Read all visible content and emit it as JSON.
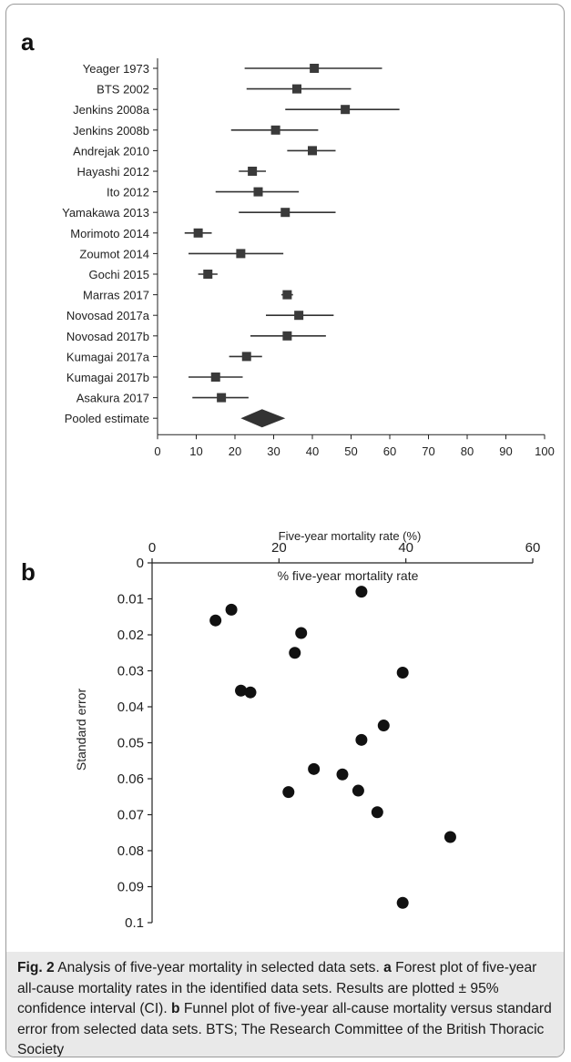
{
  "panel_a_letter": "a",
  "panel_b_letter": "b",
  "chart_data": [
    {
      "type": "forest",
      "panel": "a",
      "xlabel": "Five-year mortality rate (%)",
      "xlim": [
        0,
        100
      ],
      "xticks": [
        0,
        10,
        20,
        30,
        40,
        50,
        60,
        70,
        80,
        90,
        100
      ],
      "grid": false,
      "studies": [
        {
          "label": "Yeager 1973",
          "estimate": 40.5,
          "lower": 22.5,
          "upper": 58
        },
        {
          "label": "BTS 2002",
          "estimate": 36,
          "lower": 23,
          "upper": 50
        },
        {
          "label": "Jenkins 2008a",
          "estimate": 48.5,
          "lower": 33,
          "upper": 62.5
        },
        {
          "label": "Jenkins 2008b",
          "estimate": 30.5,
          "lower": 19,
          "upper": 41.5
        },
        {
          "label": "Andrejak 2010",
          "estimate": 40,
          "lower": 33.5,
          "upper": 46
        },
        {
          "label": "Hayashi 2012",
          "estimate": 24.5,
          "lower": 21,
          "upper": 28
        },
        {
          "label": "Ito 2012",
          "estimate": 26,
          "lower": 15,
          "upper": 36.5
        },
        {
          "label": "Yamakawa 2013",
          "estimate": 33,
          "lower": 21,
          "upper": 46
        },
        {
          "label": "Morimoto 2014",
          "estimate": 10.5,
          "lower": 7,
          "upper": 14
        },
        {
          "label": "Zoumot 2014",
          "estimate": 21.5,
          "lower": 8,
          "upper": 32.5
        },
        {
          "label": "Gochi 2015",
          "estimate": 13,
          "lower": 10.5,
          "upper": 15.5
        },
        {
          "label": "Marras 2017",
          "estimate": 33.5,
          "lower": 32,
          "upper": 35
        },
        {
          "label": "Novosad 2017a",
          "estimate": 36.5,
          "lower": 28,
          "upper": 45.5
        },
        {
          "label": "Novosad 2017b",
          "estimate": 33.5,
          "lower": 24,
          "upper": 43.5
        },
        {
          "label": "Kumagai 2017a",
          "estimate": 23,
          "lower": 18.5,
          "upper": 27
        },
        {
          "label": "Kumagai 2017b",
          "estimate": 15,
          "lower": 8,
          "upper": 22
        },
        {
          "label": "Asakura 2017",
          "estimate": 16.5,
          "lower": 9,
          "upper": 23.5
        }
      ],
      "pooled": {
        "label": "Pooled estimate",
        "estimate": 27,
        "lower": 21.5,
        "upper": 33
      }
    },
    {
      "type": "scatter",
      "panel": "b",
      "xlabel": "% five-year mortality rate",
      "ylabel": "Standard error",
      "xlim": [
        0,
        60
      ],
      "xticks": [
        0,
        20,
        40,
        60
      ],
      "ylim": [
        0,
        0.1
      ],
      "yticks": [
        "0",
        "0.01",
        "0.02",
        "0.03",
        "0.04",
        "0.05",
        "0.06",
        "0.07",
        "0.08",
        "0.09",
        "0.1"
      ],
      "x_axis_position": "top",
      "y_axis_reversed": true,
      "grid": false,
      "points": [
        {
          "x": 33,
          "y": 0.008
        },
        {
          "x": 12.5,
          "y": 0.013
        },
        {
          "x": 10,
          "y": 0.016
        },
        {
          "x": 23.5,
          "y": 0.0195
        },
        {
          "x": 22.5,
          "y": 0.025
        },
        {
          "x": 39.5,
          "y": 0.0305
        },
        {
          "x": 14,
          "y": 0.0355
        },
        {
          "x": 15.5,
          "y": 0.036
        },
        {
          "x": 36.5,
          "y": 0.0452
        },
        {
          "x": 33,
          "y": 0.0492
        },
        {
          "x": 25.5,
          "y": 0.0573
        },
        {
          "x": 30,
          "y": 0.0588
        },
        {
          "x": 32.5,
          "y": 0.0633
        },
        {
          "x": 21.5,
          "y": 0.0637
        },
        {
          "x": 35.5,
          "y": 0.0693
        },
        {
          "x": 47,
          "y": 0.0762
        },
        {
          "x": 39.5,
          "y": 0.0945
        }
      ]
    }
  ],
  "caption": {
    "fig_label": "Fig. 2",
    "text_1": " Analysis of five-year mortality in selected data sets. ",
    "a_letter": "a",
    "text_2": " Forest plot of five-year all-cause mortality rates in the identified data sets. Results are plotted ± 95% confidence interval (CI). ",
    "b_letter": "b",
    "text_3": " Funnel plot of five-year all-cause mortality versus standard error from selected data sets. BTS; The Research Committee of the British Thoracic Society"
  }
}
